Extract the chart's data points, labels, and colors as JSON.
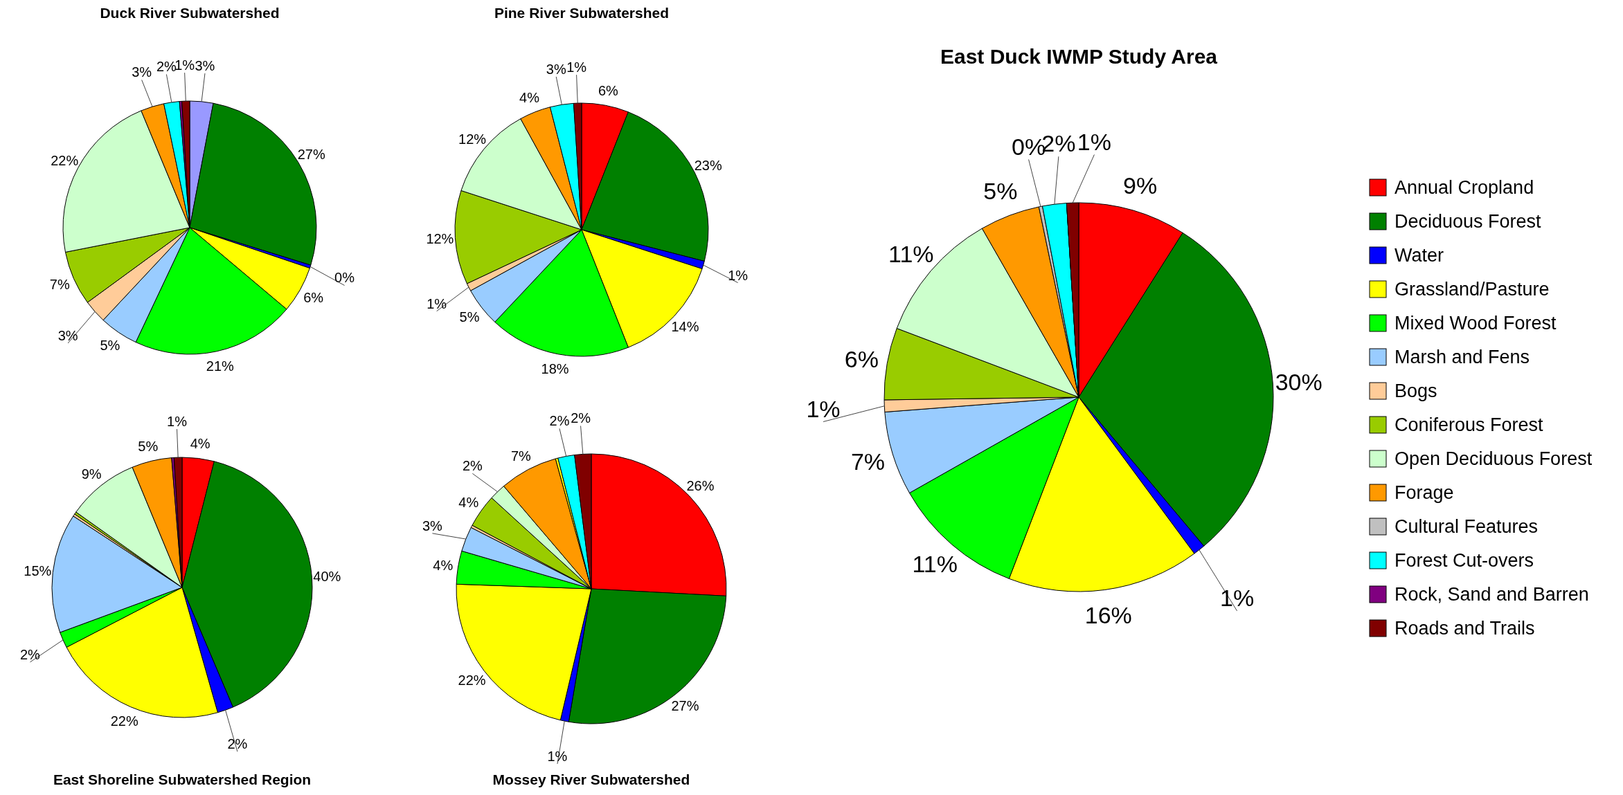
{
  "chart_data": [
    {
      "type": "pie",
      "title": "Duck River Subwatershed",
      "legend": false,
      "categories": [
        null,
        null,
        null,
        null,
        null,
        null,
        null,
        null,
        null,
        null,
        null,
        null,
        null
      ],
      "values": [
        3,
        27,
        0.4,
        6,
        21,
        5,
        3,
        7,
        22,
        3,
        2,
        0.3,
        1
      ],
      "value_labels": [
        "3%",
        "27%",
        "0%",
        "6%",
        "21%",
        "5%",
        "3%",
        "7%",
        "22%",
        "3%",
        "2%",
        null,
        "1%"
      ],
      "colors": [
        "#9999ff",
        "#008000",
        "#0000ff",
        "#ffff00",
        "#00ff00",
        "#99ccff",
        "#ffcc99",
        "#99cc00",
        "#ccffcc",
        "#ff9900",
        "#00ffff",
        "#800080",
        "#800000"
      ]
    },
    {
      "type": "pie",
      "title": "Pine River Subwatershed",
      "legend": false,
      "categories": [
        null,
        null,
        null,
        null,
        null,
        null,
        null,
        null,
        null,
        null,
        null,
        null
      ],
      "values": [
        6,
        23,
        1,
        14,
        18,
        5,
        1,
        12,
        12,
        4,
        3,
        1
      ],
      "value_labels": [
        "6%",
        "23%",
        "1%",
        "14%",
        "18%",
        "5%",
        "1%",
        "12%",
        "12%",
        "4%",
        "3%",
        "1%"
      ],
      "colors": [
        "#ff0000",
        "#008000",
        "#0000ff",
        "#ffff00",
        "#00ff00",
        "#99ccff",
        "#ffcc99",
        "#99cc00",
        "#ccffcc",
        "#ff9900",
        "#00ffff",
        "#800000"
      ]
    },
    {
      "type": "pie",
      "title": "East Shoreline Subwatershed Region",
      "legend": false,
      "categories": [
        null,
        null,
        null,
        null,
        null,
        null,
        null,
        null,
        null,
        null,
        null,
        null
      ],
      "values": [
        4,
        40,
        2,
        22,
        2,
        15,
        0.3,
        0.3,
        9,
        5,
        0.3,
        1
      ],
      "value_labels": [
        "4%",
        "40%",
        "2%",
        "22%",
        "2%",
        "15%",
        null,
        null,
        "9%",
        "5%",
        null,
        "1%"
      ],
      "colors": [
        "#ff0000",
        "#008000",
        "#0000ff",
        "#ffff00",
        "#00ff00",
        "#99ccff",
        "#ffcc99",
        "#99cc00",
        "#ccffcc",
        "#ff9900",
        "#800080",
        "#800000"
      ]
    },
    {
      "type": "pie",
      "title": "Mossey River Subwatershed",
      "legend": false,
      "categories": [
        null,
        null,
        null,
        null,
        null,
        null,
        null,
        null,
        null,
        null,
        null,
        null,
        null
      ],
      "values": [
        26,
        27,
        1,
        22,
        4,
        3,
        0.3,
        4,
        2,
        7,
        0.3,
        2,
        2
      ],
      "value_labels": [
        "26%",
        "27%",
        "1%",
        "22%",
        "4%",
        "3%",
        null,
        "4%",
        "2%",
        "7%",
        null,
        "2%",
        "2%"
      ],
      "colors": [
        "#ff0000",
        "#008000",
        "#0000ff",
        "#ffff00",
        "#00ff00",
        "#99ccff",
        "#ffcc99",
        "#99cc00",
        "#ccffcc",
        "#ff9900",
        "#ffff00",
        "#00ffff",
        "#800000"
      ]
    },
    {
      "type": "pie",
      "title": "East Duck IWMP Study Area",
      "legend": "right",
      "categories": [
        "Annual Cropland",
        "Deciduous Forest",
        "Water",
        "Grassland/Pasture",
        "Mixed Wood Forest",
        "Marsh and Fens",
        "Bogs",
        "Coniferous Forest",
        "Open Deciduous Forest",
        "Forage",
        "Cultural Features",
        "Forest Cut-overs",
        "Rock, Sand and Barren",
        "Roads and Trails"
      ],
      "values": [
        9,
        30,
        1,
        16,
        11,
        7,
        1,
        6,
        11,
        5,
        0.3,
        2,
        0,
        1
      ],
      "value_labels": [
        "9%",
        "30%",
        "1%",
        "16%",
        "11%",
        "7%",
        "1%",
        "6%",
        "11%",
        "5%",
        "0%",
        "2%",
        null,
        "1%"
      ],
      "colors": [
        "#ff0000",
        "#008000",
        "#0000ff",
        "#ffff00",
        "#00ff00",
        "#99ccff",
        "#ffcc99",
        "#99cc00",
        "#ccffcc",
        "#ff9900",
        "#c0c0c0",
        "#00ffff",
        "#800080",
        "#800000"
      ]
    }
  ]
}
